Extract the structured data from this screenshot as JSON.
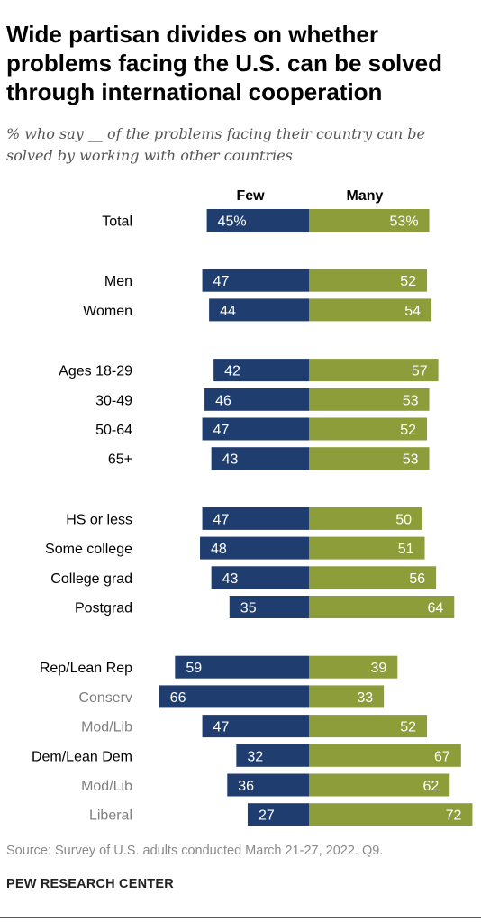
{
  "title": "Wide partisan divides on whether problems facing the U.S. can be solved through international cooperation",
  "subtitle": "% who say __ of the problems facing their country can be solved by working with other countries",
  "source": "Source: Survey of U.S. adults conducted March 21-27, 2022. Q9.",
  "footer": "PEW RESEARCH CENTER",
  "colors": {
    "few": "#1f3d6f",
    "many": "#8d9d3a",
    "label_primary": "#000000",
    "label_secondary": "#7f7f7f",
    "value_text": "#ffffff"
  },
  "chart_data": {
    "type": "bar",
    "orientation": "horizontal-diverging",
    "series": [
      {
        "name": "Few"
      },
      {
        "name": "Many"
      }
    ],
    "rows": [
      {
        "label": "Total",
        "few": 45,
        "many": 53,
        "few_label": "45%",
        "many_label": "53%",
        "group": 0,
        "sub": false
      },
      {
        "label": "Men",
        "few": 47,
        "many": 52,
        "few_label": "47",
        "many_label": "52",
        "group": 1,
        "sub": false
      },
      {
        "label": "Women",
        "few": 44,
        "many": 54,
        "few_label": "44",
        "many_label": "54",
        "group": 1,
        "sub": false
      },
      {
        "label": "Ages 18-29",
        "few": 42,
        "many": 57,
        "few_label": "42",
        "many_label": "57",
        "group": 2,
        "sub": false
      },
      {
        "label": "30-49",
        "few": 46,
        "many": 53,
        "few_label": "46",
        "many_label": "53",
        "group": 2,
        "sub": false
      },
      {
        "label": "50-64",
        "few": 47,
        "many": 52,
        "few_label": "47",
        "many_label": "52",
        "group": 2,
        "sub": false
      },
      {
        "label": "65+",
        "few": 43,
        "many": 53,
        "few_label": "43",
        "many_label": "53",
        "group": 2,
        "sub": false
      },
      {
        "label": "HS or less",
        "few": 47,
        "many": 50,
        "few_label": "47",
        "many_label": "50",
        "group": 3,
        "sub": false
      },
      {
        "label": "Some college",
        "few": 48,
        "many": 51,
        "few_label": "48",
        "many_label": "51",
        "group": 3,
        "sub": false
      },
      {
        "label": "College grad",
        "few": 43,
        "many": 56,
        "few_label": "43",
        "many_label": "56",
        "group": 3,
        "sub": false
      },
      {
        "label": "Postgrad",
        "few": 35,
        "many": 64,
        "few_label": "35",
        "many_label": "64",
        "group": 3,
        "sub": false
      },
      {
        "label": "Rep/Lean Rep",
        "few": 59,
        "many": 39,
        "few_label": "59",
        "many_label": "39",
        "group": 4,
        "sub": false
      },
      {
        "label": "Conserv",
        "few": 66,
        "many": 33,
        "few_label": "66",
        "many_label": "33",
        "group": 4,
        "sub": true
      },
      {
        "label": "Mod/Lib",
        "few": 47,
        "many": 52,
        "few_label": "47",
        "many_label": "52",
        "group": 4,
        "sub": true
      },
      {
        "label": "Dem/Lean Dem",
        "few": 32,
        "many": 67,
        "few_label": "32",
        "many_label": "67",
        "group": 4,
        "sub": false
      },
      {
        "label": "Mod/Lib",
        "few": 36,
        "many": 62,
        "few_label": "36",
        "many_label": "62",
        "group": 4,
        "sub": true
      },
      {
        "label": "Liberal",
        "few": 27,
        "many": 72,
        "few_label": "27",
        "many_label": "72",
        "group": 4,
        "sub": true
      }
    ],
    "xlim": [
      0,
      100
    ],
    "grid": false,
    "legend": "top"
  }
}
